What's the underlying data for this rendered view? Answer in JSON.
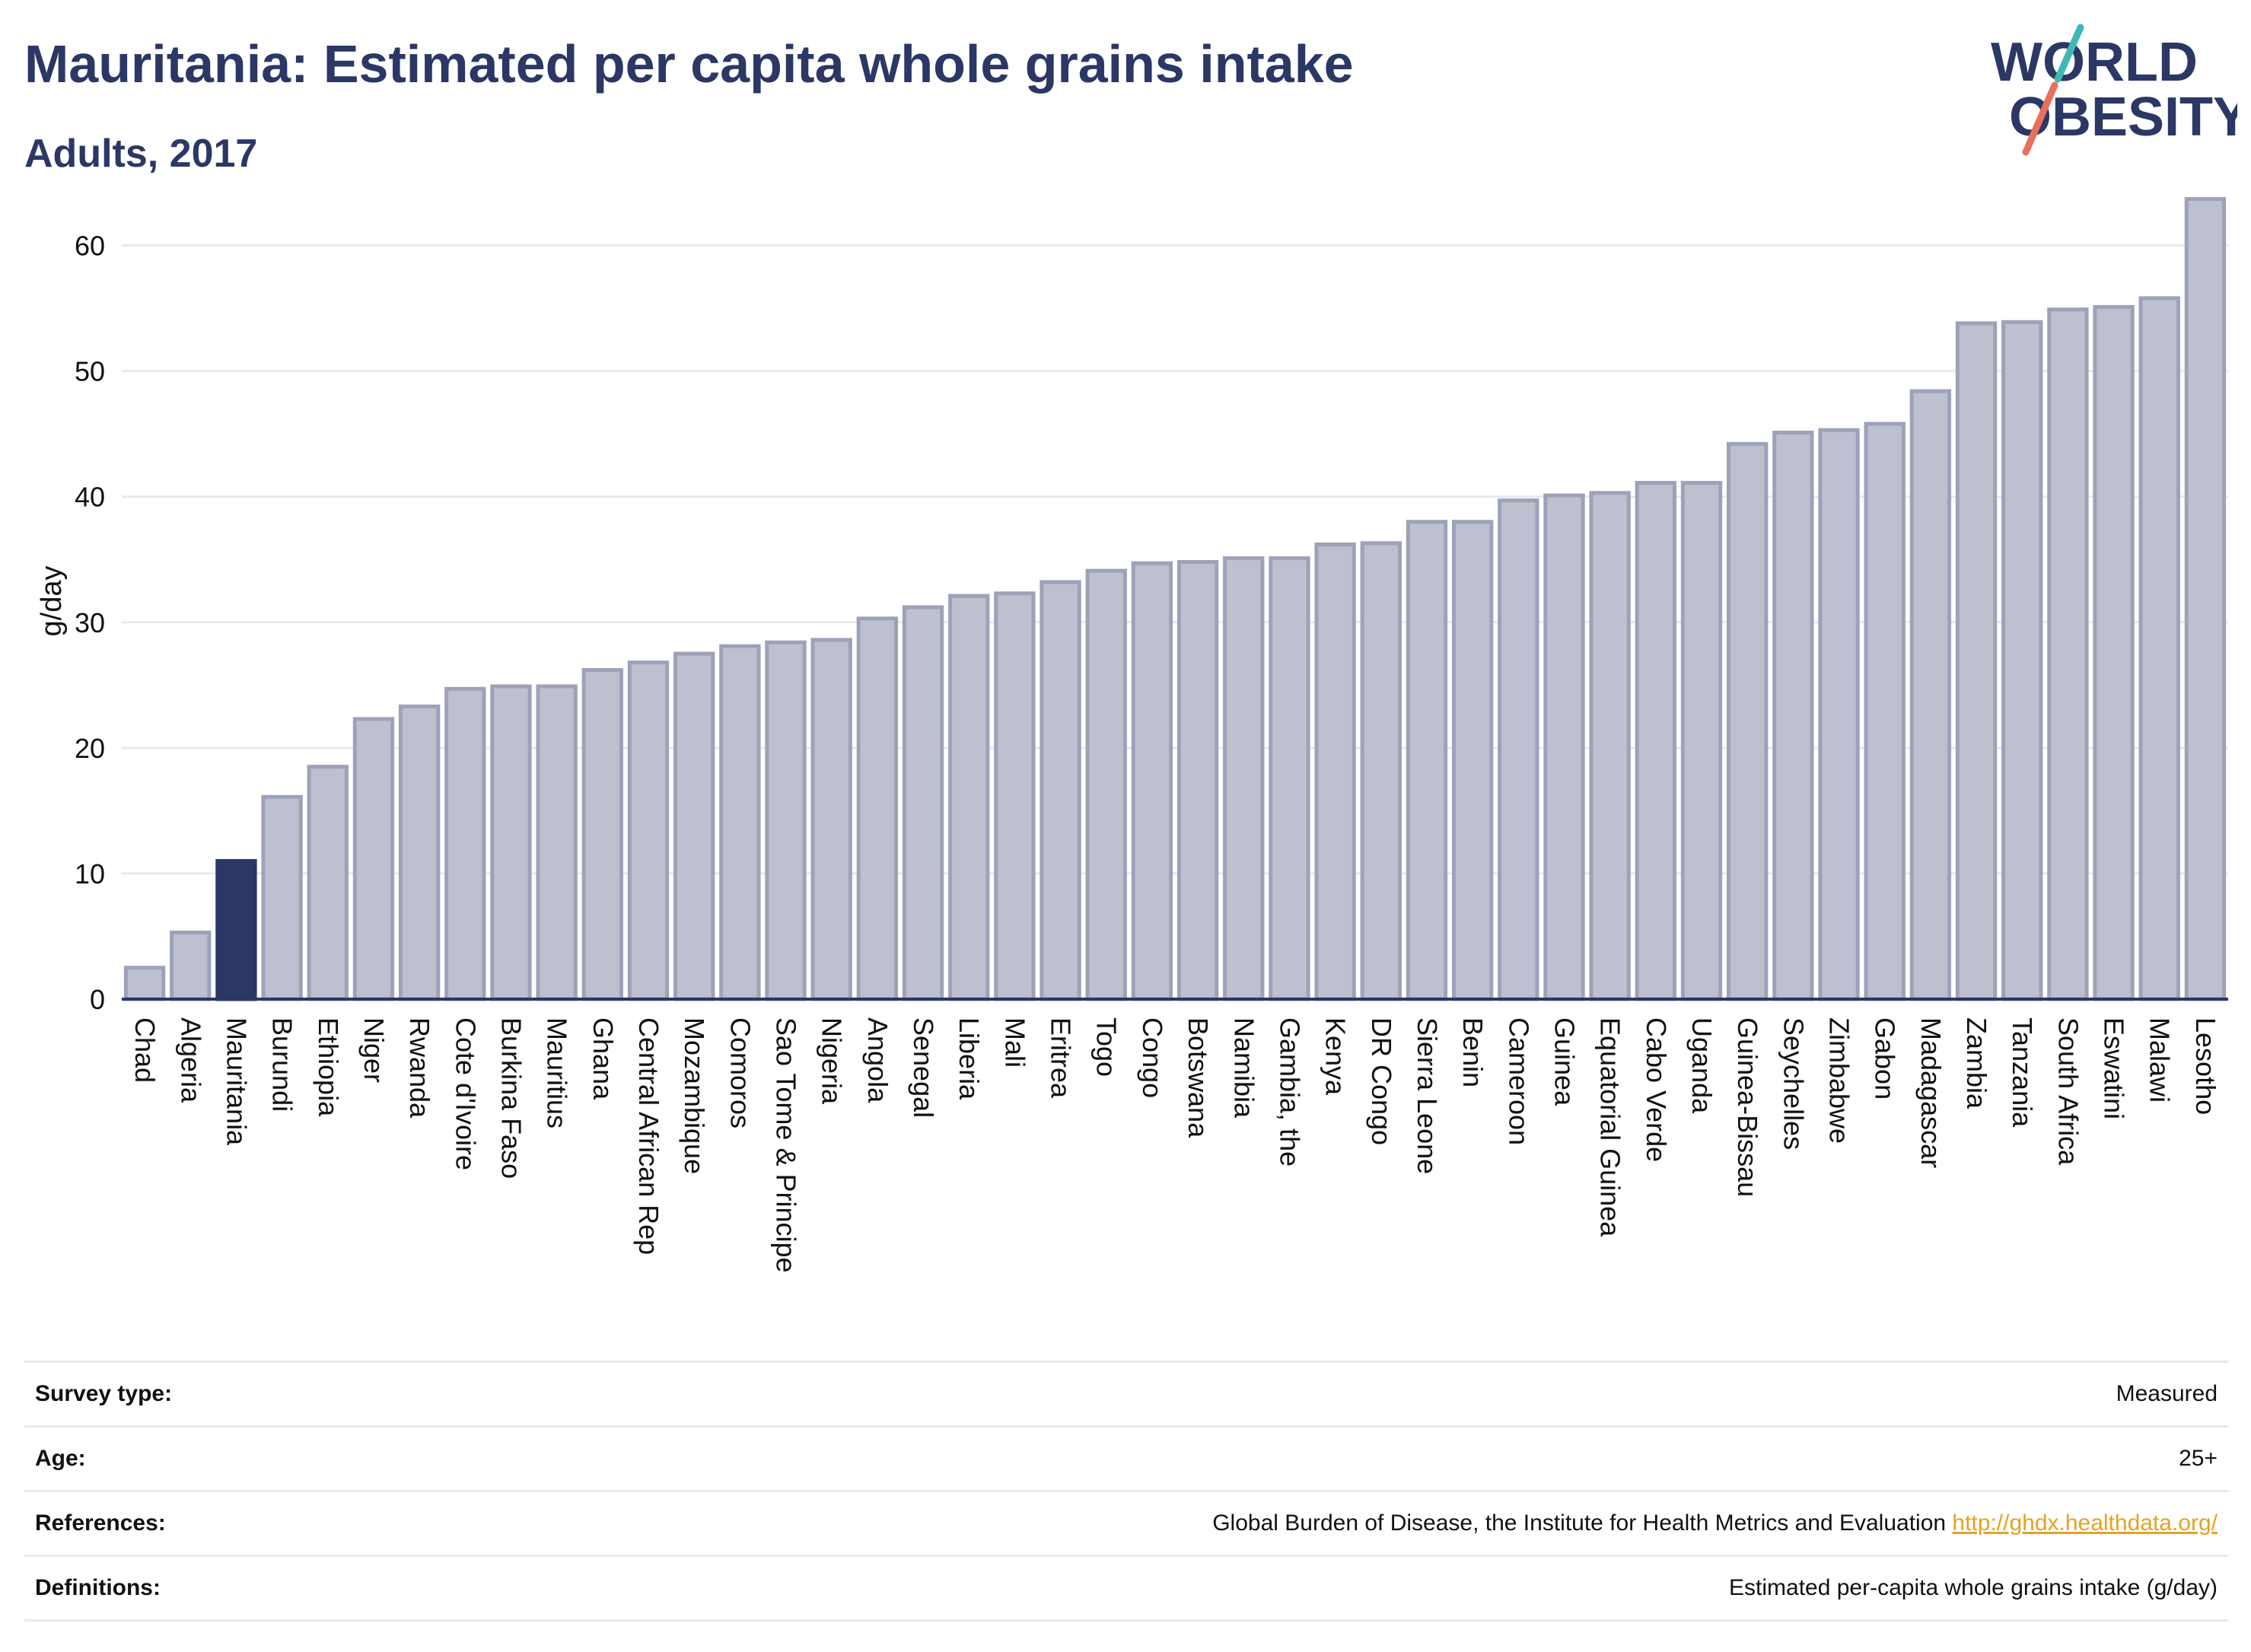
{
  "header": {
    "title": "Mauritania: Estimated per capita whole grains intake",
    "subtitle": "Adults, 2017",
    "logo_line1": "WORLD",
    "logo_line2": "OBESITY"
  },
  "chart_data": {
    "type": "bar",
    "ylabel": "g/day",
    "ylim": [
      0,
      65
    ],
    "yticks": [
      0,
      10,
      20,
      30,
      40,
      50,
      60
    ],
    "grid": true,
    "highlight": "Mauritania",
    "colors": {
      "bar": "#bcc0cf",
      "bar_border": "#9da2b8",
      "highlight": "#2b3765",
      "grid": "#e6e9ee"
    },
    "categories": [
      "Chad",
      "Algeria",
      "Mauritania",
      "Burundi",
      "Ethiopia",
      "Niger",
      "Rwanda",
      "Cote d'Ivoire",
      "Burkina Faso",
      "Mauritius",
      "Ghana",
      "Central African Rep",
      "Mozambique",
      "Comoros",
      "Sao Tome & Principe",
      "Nigeria",
      "Angola",
      "Senegal",
      "Liberia",
      "Mali",
      "Eritrea",
      "Togo",
      "Congo",
      "Botswana",
      "Namibia",
      "Gambia, the",
      "Kenya",
      "DR Congo",
      "Sierra Leone",
      "Benin",
      "Cameroon",
      "Guinea",
      "Equatorial Guinea",
      "Cabo Verde",
      "Uganda",
      "Guinea-Bissau",
      "Seychelles",
      "Zimbabwe",
      "Gabon",
      "Madagascar",
      "Zambia",
      "Tanzania",
      "South Africa",
      "Eswatini",
      "Malawi",
      "Lesotho"
    ],
    "values": [
      2.5,
      5.3,
      11.0,
      16.1,
      18.5,
      22.3,
      23.3,
      24.7,
      24.9,
      24.9,
      26.2,
      26.8,
      27.5,
      28.1,
      28.4,
      28.6,
      30.3,
      31.2,
      32.1,
      32.3,
      33.2,
      34.1,
      34.7,
      34.8,
      35.1,
      35.1,
      36.2,
      36.3,
      38.0,
      38.0,
      39.7,
      40.1,
      40.3,
      41.1,
      41.1,
      44.2,
      45.1,
      45.3,
      45.8,
      48.4,
      53.8,
      53.9,
      54.9,
      55.1,
      55.8,
      63.7
    ]
  },
  "meta": {
    "survey_type_label": "Survey type:",
    "survey_type_value": "Measured",
    "age_label": "Age:",
    "age_value": "25+",
    "references_label": "References:",
    "references_text": "Global Burden of Disease, the Institute for Health Metrics and Evaluation ",
    "references_link": "http://ghdx.healthdata.org/",
    "definitions_label": "Definitions:",
    "definitions_value": "Estimated per-capita whole grains intake (g/day)"
  }
}
